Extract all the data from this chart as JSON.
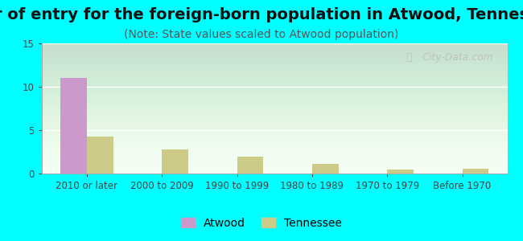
{
  "title": "Year of entry for the foreign-born population in Atwood, Tennessee",
  "subtitle": "(Note: State values scaled to Atwood population)",
  "categories": [
    "2010 or later",
    "2000 to 2009",
    "1990 to 1999",
    "1980 to 1989",
    "1970 to 1979",
    "Before 1970"
  ],
  "atwood_values": [
    11,
    0,
    0,
    0,
    0,
    0
  ],
  "tennessee_values": [
    4.3,
    2.8,
    1.9,
    1.1,
    0.5,
    0.6
  ],
  "atwood_color": "#cc99cc",
  "tennessee_color": "#cccc88",
  "bar_width": 0.35,
  "ylim": [
    0,
    15
  ],
  "yticks": [
    0,
    5,
    10,
    15
  ],
  "background_color": "#00ffff",
  "title_fontsize": 14,
  "subtitle_fontsize": 10,
  "legend_labels": [
    "Atwood",
    "Tennessee"
  ],
  "watermark": "City-Data.com"
}
